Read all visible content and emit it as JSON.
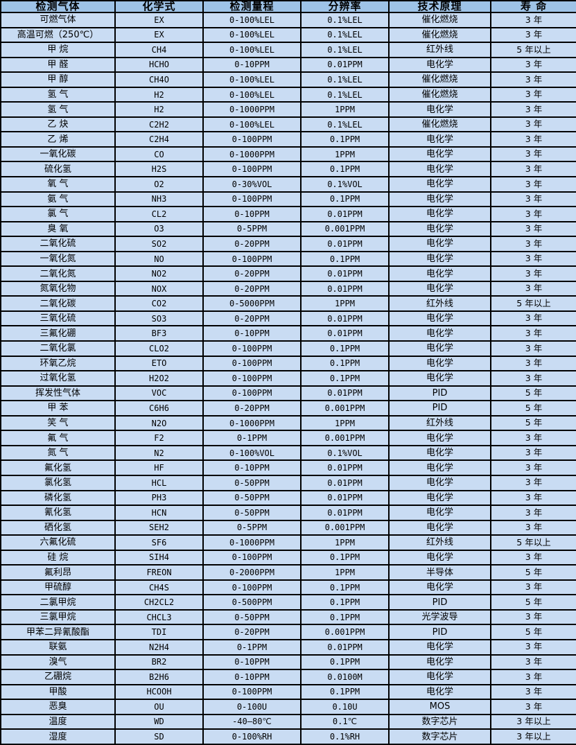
{
  "colors": {
    "header_bg": "#9ec3e7",
    "row_bg": "#c9dcf3",
    "border": "#000000",
    "text": "#000000"
  },
  "table": {
    "name": "gas-sensor-specification-table",
    "columns": [
      {
        "label": "检测气体"
      },
      {
        "label": "化学式"
      },
      {
        "label": "检测量程"
      },
      {
        "label": "分辨率"
      },
      {
        "label": "技术原理"
      },
      {
        "label": "寿 命"
      }
    ],
    "rows": [
      [
        "可燃气体",
        "EX",
        "0-100%LEL",
        "0.1%LEL",
        "催化燃烧",
        "3 年"
      ],
      [
        "高温可燃（250℃）",
        "EX",
        "0-100%LEL",
        "0.1%LEL",
        "催化燃烧",
        "3 年"
      ],
      [
        "甲 烷",
        "CH4",
        "0-100%LEL",
        "0.1%LEL",
        "红外线",
        "5 年以上"
      ],
      [
        "甲 醛",
        "HCHO",
        "0-10PPM",
        "0.01PPM",
        "电化学",
        "3 年"
      ],
      [
        "甲 醇",
        "CH4O",
        "0-100%LEL",
        "0.1%LEL",
        "催化燃烧",
        "3 年"
      ],
      [
        "氢 气",
        "H2",
        "0-100%LEL",
        "0.1%LEL",
        "催化燃烧",
        "3 年"
      ],
      [
        "氢 气",
        "H2",
        "0-1000PPM",
        "1PPM",
        "电化学",
        "3 年"
      ],
      [
        "乙 炔",
        "C2H2",
        "0-100%LEL",
        "0.1%LEL",
        "催化燃烧",
        "3 年"
      ],
      [
        "乙 烯",
        "C2H4",
        "0-100PPM",
        "0.1PPM",
        "电化学",
        "3 年"
      ],
      [
        "一氧化碳",
        "CO",
        "0-1000PPM",
        "1PPM",
        "电化学",
        "3 年"
      ],
      [
        "硫化氢",
        "H2S",
        "0-100PPM",
        "0.1PPM",
        "电化学",
        "3 年"
      ],
      [
        "氧 气",
        "O2",
        "0-30%VOL",
        "0.1%VOL",
        "电化学",
        "3 年"
      ],
      [
        "氨 气",
        "NH3",
        "0-100PPM",
        "0.1PPM",
        "电化学",
        "3 年"
      ],
      [
        "氯 气",
        "CL2",
        "0-10PPM",
        "0.01PPM",
        "电化学",
        "3 年"
      ],
      [
        "臭 氧",
        "O3",
        "0-5PPM",
        "0.001PPM",
        "电化学",
        "3 年"
      ],
      [
        "二氧化硫",
        "SO2",
        "0-20PPM",
        "0.01PPM",
        "电化学",
        "3 年"
      ],
      [
        "一氧化氮",
        "NO",
        "0-100PPM",
        "0.1PPM",
        "电化学",
        "3 年"
      ],
      [
        "二氧化氮",
        "NO2",
        "0-20PPM",
        "0.01PPM",
        "电化学",
        "3 年"
      ],
      [
        "氮氧化物",
        "NOX",
        "0-20PPM",
        "0.01PPM",
        "电化学",
        "3 年"
      ],
      [
        "二氧化碳",
        "CO2",
        "0-5000PPM",
        "1PPM",
        "红外线",
        "5 年以上"
      ],
      [
        "三氧化硫",
        "SO3",
        "0-20PPM",
        "0.01PPM",
        "电化学",
        "3 年"
      ],
      [
        "三氟化硼",
        "BF3",
        "0-10PPM",
        "0.01PPM",
        "电化学",
        "3 年"
      ],
      [
        "二氧化氯",
        "CLO2",
        "0-100PPM",
        "0.1PPM",
        "电化学",
        "3 年"
      ],
      [
        "环氧乙烷",
        "ETO",
        "0-100PPM",
        "0.1PPM",
        "电化学",
        "3 年"
      ],
      [
        "过氧化氢",
        "H2O2",
        "0-100PPM",
        "0.1PPM",
        "电化学",
        "3 年"
      ],
      [
        "挥发性气体",
        "VOC",
        "0-100PPM",
        "0.01PPM",
        "PID",
        "5 年"
      ],
      [
        "甲 苯",
        "C6H6",
        "0-20PPM",
        "0.001PPM",
        "PID",
        "5 年"
      ],
      [
        "笑 气",
        "N2O",
        "0-1000PPM",
        "1PPM",
        "红外线",
        "5 年"
      ],
      [
        "氟 气",
        "F2",
        "0-1PPM",
        "0.001PPM",
        "电化学",
        "3 年"
      ],
      [
        "氮 气",
        "N2",
        "0-100%VOL",
        "0.1%VOL",
        "电化学",
        "3 年"
      ],
      [
        "氟化氢",
        "HF",
        "0-10PPM",
        "0.01PPM",
        "电化学",
        "3 年"
      ],
      [
        "氯化氢",
        "HCL",
        "0-50PPM",
        "0.01PPM",
        "电化学",
        "3 年"
      ],
      [
        "磷化氢",
        "PH3",
        "0-50PPM",
        "0.01PPM",
        "电化学",
        "3 年"
      ],
      [
        "氰化氢",
        "HCN",
        "0-50PPM",
        "0.01PPM",
        "电化学",
        "3 年"
      ],
      [
        "硒化氢",
        "SEH2",
        "0-5PPM",
        "0.001PPM",
        "电化学",
        "3 年"
      ],
      [
        "六氟化硫",
        "SF6",
        "0-1000PPM",
        "1PPM",
        "红外线",
        "5 年以上"
      ],
      [
        "硅 烷",
        "SIH4",
        "0-100PPM",
        "0.1PPM",
        "电化学",
        "3 年"
      ],
      [
        "氟利昂",
        "FREON",
        "0-2000PPM",
        "1PPM",
        "半导体",
        "5 年"
      ],
      [
        "甲硫醇",
        "CH4S",
        "0-100PPM",
        "0.1PPM",
        "电化学",
        "3 年"
      ],
      [
        "二氯甲烷",
        "CH2CL2",
        "0-500PPM",
        "0.1PPM",
        "PID",
        "5 年"
      ],
      [
        "三氯甲烷",
        "CHCL3",
        "0-50PPM",
        "0.1PPM",
        "光学波导",
        "3 年"
      ],
      [
        "甲苯二异氰酸酯",
        "TDI",
        "0-20PPM",
        "0.001PPM",
        "PID",
        "5 年"
      ],
      [
        "联氨",
        "N2H4",
        "0-1PPM",
        "0.01PPM",
        "电化学",
        "3 年"
      ],
      [
        "溴气",
        "BR2",
        "0-10PPM",
        "0.1PPM",
        "电化学",
        "3 年"
      ],
      [
        "乙硼烷",
        "B2H6",
        "0-10PPM",
        "0.0100M",
        "电化学",
        "3 年"
      ],
      [
        "甲酸",
        "HCOOH",
        "0-100PPM",
        "0.1PPM",
        "电化学",
        "3 年"
      ],
      [
        "恶臭",
        "OU",
        "0-100U",
        "0.10U",
        "MOS",
        "3 年"
      ],
      [
        "温度",
        "WD",
        "-40—80℃",
        "0.1℃",
        "数字芯片",
        "3 年以上"
      ],
      [
        "湿度",
        "SD",
        "0-100%RH",
        "0.1%RH",
        "数字芯片",
        "3 年以上"
      ]
    ]
  }
}
